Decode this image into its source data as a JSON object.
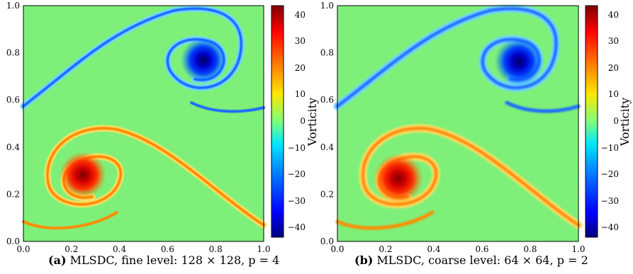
{
  "colors": {
    "background_green": "#7ef07a",
    "colormap": [
      "#00007f",
      "#0000ff",
      "#0080ff",
      "#00e5ff",
      "#7dff7a",
      "#ffe600",
      "#ff7a00",
      "#ff0000",
      "#7f0000"
    ]
  },
  "chart_data": [
    {
      "type": "heatmap",
      "panel": "a",
      "caption": {
        "label": "(a)",
        "text": "MLSDC, fine level: 128 × 128, p = 4"
      },
      "xlim": [
        0.0,
        1.0
      ],
      "ylim": [
        0.0,
        1.0
      ],
      "x_ticks": [
        "0.0",
        "0.2",
        "0.4",
        "0.6",
        "0.8",
        "1.0"
      ],
      "y_ticks": [
        "0.0",
        "0.2",
        "0.4",
        "0.6",
        "0.8",
        "1.0"
      ],
      "colorbar": {
        "label": "Vorticity",
        "range": [
          -45,
          45
        ],
        "ticks": [
          "40",
          "30",
          "20",
          "10",
          "0",
          "−10",
          "−20",
          "−30",
          "−40"
        ]
      },
      "features": [
        {
          "kind": "vortex core",
          "sign": "negative",
          "center": [
            0.75,
            0.76
          ],
          "peak": -45
        },
        {
          "kind": "vortex core",
          "sign": "positive",
          "center": [
            0.25,
            0.25
          ],
          "peak": 45
        },
        {
          "kind": "shear layer",
          "sign": "negative",
          "from": [
            0.0,
            0.57
          ],
          "through": [
            0.6,
            0.97
          ],
          "to": [
            1.0,
            0.56
          ]
        },
        {
          "kind": "shear layer",
          "sign": "positive",
          "from": [
            0.0,
            0.07
          ],
          "through": [
            0.4,
            0.48
          ],
          "to": [
            1.0,
            0.08
          ]
        }
      ]
    },
    {
      "type": "heatmap",
      "panel": "b",
      "caption": {
        "label": "(b)",
        "text": "MLSDC, coarse level: 64 × 64, p = 2"
      },
      "xlim": [
        0.0,
        1.0
      ],
      "ylim": [
        0.0,
        1.0
      ],
      "x_ticks": [
        "0.0",
        "0.2",
        "0.4",
        "0.6",
        "0.8",
        "1.0"
      ],
      "y_ticks": [
        "0.0",
        "0.2",
        "0.4",
        "0.6",
        "0.8",
        "1.0"
      ],
      "colorbar": {
        "label": "Vorticity",
        "range": [
          -45,
          45
        ],
        "ticks": [
          "40",
          "30",
          "20",
          "10",
          "0",
          "−10",
          "−20",
          "−30",
          "−40"
        ]
      },
      "features": [
        {
          "kind": "vortex core",
          "sign": "negative",
          "center": [
            0.76,
            0.77
          ],
          "peak": -45
        },
        {
          "kind": "vortex core",
          "sign": "positive",
          "center": [
            0.26,
            0.26
          ],
          "peak": 45
        },
        {
          "kind": "shear layer",
          "sign": "negative",
          "from": [
            0.0,
            0.58
          ],
          "through": [
            0.6,
            0.97
          ],
          "to": [
            1.0,
            0.57
          ]
        },
        {
          "kind": "shear layer",
          "sign": "positive",
          "from": [
            0.0,
            0.07
          ],
          "through": [
            0.4,
            0.48
          ],
          "to": [
            1.0,
            0.08
          ]
        }
      ]
    }
  ]
}
